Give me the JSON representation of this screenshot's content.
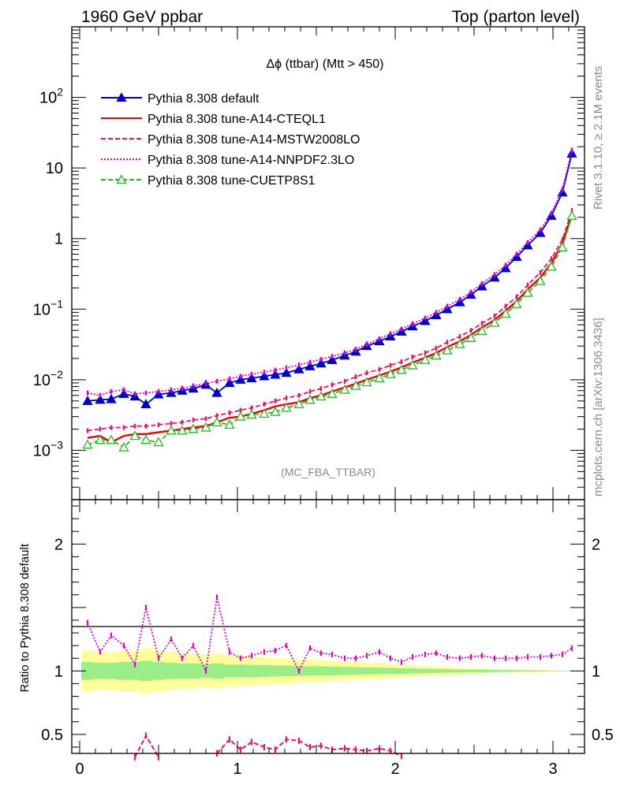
{
  "header": {
    "left": "1960 GeV ppbar",
    "right": "Top (parton level)"
  },
  "side": {
    "rivet": "Rivet 3.1.10, ≥ 2.1M events",
    "mcplots": "mcplots.cern.ch [arXiv:1306.3436]"
  },
  "chart_data": {
    "type": "line",
    "title": "Δϕ (ttbar) (Mtt > 450)",
    "analysis_label": "(MC_FBA_TTBAR)",
    "xlim": [
      -0.05,
      3.2
    ],
    "y_scale": "log",
    "ylim": [
      0.0002,
      1000
    ],
    "y_ticks": [
      {
        "value": 0.001,
        "base": "10",
        "exp": "−3"
      },
      {
        "value": 0.01,
        "base": "10",
        "exp": "−2"
      },
      {
        "value": 0.1,
        "base": "10",
        "exp": "−1"
      },
      {
        "value": 1,
        "base": "1",
        "exp": ""
      },
      {
        "value": 10,
        "base": "10",
        "exp": ""
      },
      {
        "value": 100,
        "base": "10",
        "exp": "2"
      }
    ],
    "x_ticks": [
      "0",
      "1",
      "2",
      "3"
    ],
    "legend_position": "top-left",
    "x": [
      0.05,
      0.13,
      0.2,
      0.28,
      0.35,
      0.42,
      0.5,
      0.58,
      0.65,
      0.72,
      0.8,
      0.87,
      0.95,
      1.02,
      1.09,
      1.17,
      1.24,
      1.31,
      1.39,
      1.46,
      1.53,
      1.6,
      1.68,
      1.75,
      1.82,
      1.9,
      1.97,
      2.04,
      2.11,
      2.19,
      2.26,
      2.33,
      2.41,
      2.48,
      2.55,
      2.63,
      2.7,
      2.77,
      2.84,
      2.92,
      2.99,
      3.06,
      3.12
    ],
    "series": [
      {
        "name": "Pythia 8.308 default",
        "color": "#0000cc",
        "style": "solid",
        "marker": "triangle-filled",
        "values": [
          0.005,
          0.0052,
          0.0053,
          0.0063,
          0.0058,
          0.0045,
          0.0062,
          0.0065,
          0.007,
          0.0075,
          0.0085,
          0.0065,
          0.009,
          0.01,
          0.0105,
          0.0112,
          0.0118,
          0.0125,
          0.014,
          0.0155,
          0.017,
          0.019,
          0.022,
          0.025,
          0.03,
          0.035,
          0.041,
          0.048,
          0.057,
          0.068,
          0.082,
          0.1,
          0.125,
          0.16,
          0.21,
          0.28,
          0.38,
          0.55,
          0.8,
          1.2,
          2.1,
          4.5,
          16
        ]
      },
      {
        "name": "Pythia 8.308 tune-A14-CTEQL1",
        "color": "#ee0000",
        "style": "solid",
        "marker": "none",
        "values": [
          0.0015,
          0.0016,
          0.0013,
          0.0016,
          0.0017,
          0.0017,
          0.0018,
          0.0019,
          0.002,
          0.0021,
          0.0022,
          0.0025,
          0.0029,
          0.003,
          0.0033,
          0.0037,
          0.0042,
          0.0045,
          0.0048,
          0.0055,
          0.006,
          0.0068,
          0.0078,
          0.0088,
          0.01,
          0.0115,
          0.013,
          0.015,
          0.0175,
          0.0205,
          0.024,
          0.029,
          0.035,
          0.043,
          0.055,
          0.07,
          0.095,
          0.13,
          0.19,
          0.28,
          0.45,
          0.85,
          2.2
        ]
      },
      {
        "name": "Pythia 8.308 tune-A14-MSTW2008LO",
        "color": "#ee1166",
        "style": "dashed",
        "marker": "none",
        "values": [
          0.0019,
          0.002,
          0.0021,
          0.0021,
          0.0022,
          0.0022,
          0.0023,
          0.0024,
          0.0025,
          0.0027,
          0.0028,
          0.0031,
          0.0034,
          0.0037,
          0.004,
          0.0045,
          0.005,
          0.0055,
          0.006,
          0.0068,
          0.0075,
          0.0085,
          0.0095,
          0.011,
          0.0125,
          0.014,
          0.016,
          0.018,
          0.021,
          0.024,
          0.028,
          0.034,
          0.041,
          0.05,
          0.063,
          0.08,
          0.11,
          0.15,
          0.22,
          0.33,
          0.52,
          0.97,
          2.5
        ]
      },
      {
        "name": "Pythia 8.308 tune-A14-NNPDF2.3LO",
        "color": "#dd00cc",
        "style": "dotted",
        "marker": "none",
        "values": [
          0.0065,
          0.006,
          0.0068,
          0.0072,
          0.0063,
          0.0065,
          0.0068,
          0.0072,
          0.0075,
          0.0082,
          0.0088,
          0.0095,
          0.0103,
          0.0112,
          0.012,
          0.0128,
          0.0137,
          0.0148,
          0.0162,
          0.0177,
          0.0195,
          0.0215,
          0.024,
          0.027,
          0.032,
          0.038,
          0.045,
          0.052,
          0.062,
          0.075,
          0.09,
          0.11,
          0.138,
          0.175,
          0.23,
          0.31,
          0.42,
          0.6,
          0.88,
          1.33,
          2.3,
          5.0,
          18
        ]
      },
      {
        "name": "Pythia 8.308 tune-CUETP8S1",
        "color": "#22bb22",
        "style": "dashed",
        "marker": "triangle-open",
        "values": [
          0.0012,
          0.0014,
          0.0014,
          0.0011,
          0.0016,
          0.0014,
          0.0013,
          0.0019,
          0.0019,
          0.002,
          0.0021,
          0.0025,
          0.0023,
          0.003,
          0.0032,
          0.0033,
          0.0035,
          0.004,
          0.0045,
          0.0052,
          0.0058,
          0.0063,
          0.0072,
          0.0082,
          0.0092,
          0.0105,
          0.012,
          0.0138,
          0.016,
          0.019,
          0.022,
          0.026,
          0.032,
          0.039,
          0.049,
          0.064,
          0.086,
          0.118,
          0.17,
          0.25,
          0.4,
          0.75,
          2.1
        ]
      }
    ],
    "ratio": {
      "ylabel": "Ratio to Pythia 8.308 default",
      "ylim": [
        0.35,
        2.35
      ],
      "y_ticks": [
        "0.5",
        "1",
        "2"
      ],
      "reference": 1,
      "band_outer": [
        0.16,
        0.15,
        0.15,
        0.16,
        0.16,
        0.18,
        0.16,
        0.15,
        0.14,
        0.14,
        0.13,
        0.14,
        0.12,
        0.12,
        0.11,
        0.11,
        0.1,
        0.1,
        0.09,
        0.09,
        0.085,
        0.08,
        0.075,
        0.07,
        0.065,
        0.06,
        0.055,
        0.05,
        0.045,
        0.04,
        0.036,
        0.032,
        0.028,
        0.024,
        0.02,
        0.017,
        0.014,
        0.012,
        0.01,
        0.008,
        0.006,
        0.004,
        0.003
      ],
      "band_inner": [
        0.07,
        0.065,
        0.065,
        0.07,
        0.07,
        0.08,
        0.07,
        0.065,
        0.06,
        0.06,
        0.055,
        0.06,
        0.05,
        0.05,
        0.048,
        0.046,
        0.044,
        0.042,
        0.04,
        0.038,
        0.036,
        0.034,
        0.032,
        0.03,
        0.028,
        0.026,
        0.024,
        0.022,
        0.02,
        0.018,
        0.016,
        0.014,
        0.012,
        0.011,
        0.01,
        0.008,
        0.007,
        0.006,
        0.005,
        0.004,
        0.003,
        0.002,
        0.0015
      ],
      "nnpdf_ratio": [
        1.38,
        1.15,
        1.28,
        1.2,
        1.05,
        1.5,
        1.1,
        1.25,
        1.1,
        1.2,
        1.0,
        1.58,
        1.15,
        1.1,
        1.12,
        1.15,
        1.16,
        1.2,
        1.0,
        1.18,
        1.14,
        1.13,
        1.1,
        1.1,
        1.12,
        1.15,
        1.1,
        1.07,
        1.11,
        1.13,
        1.14,
        1.11,
        1.1,
        1.11,
        1.12,
        1.1,
        1.1,
        1.1,
        1.11,
        1.11,
        1.12,
        1.13,
        1.18
      ],
      "mstw_ratio_segments": [
        {
          "x": [
            0.35,
            0.42,
            0.5
          ],
          "y": [
            0.32,
            0.49,
            0.32
          ]
        },
        {
          "x": [
            0.87,
            0.95,
            1.02,
            1.09,
            1.17,
            1.24,
            1.31,
            1.39,
            1.46,
            1.53,
            1.6,
            1.68,
            1.75,
            1.82,
            1.9,
            1.97,
            2.04
          ],
          "y": [
            0.35,
            0.46,
            0.38,
            0.44,
            0.4,
            0.38,
            0.46,
            0.45,
            0.4,
            0.41,
            0.38,
            0.39,
            0.38,
            0.37,
            0.39,
            0.37,
            0.33
          ]
        }
      ]
    }
  }
}
